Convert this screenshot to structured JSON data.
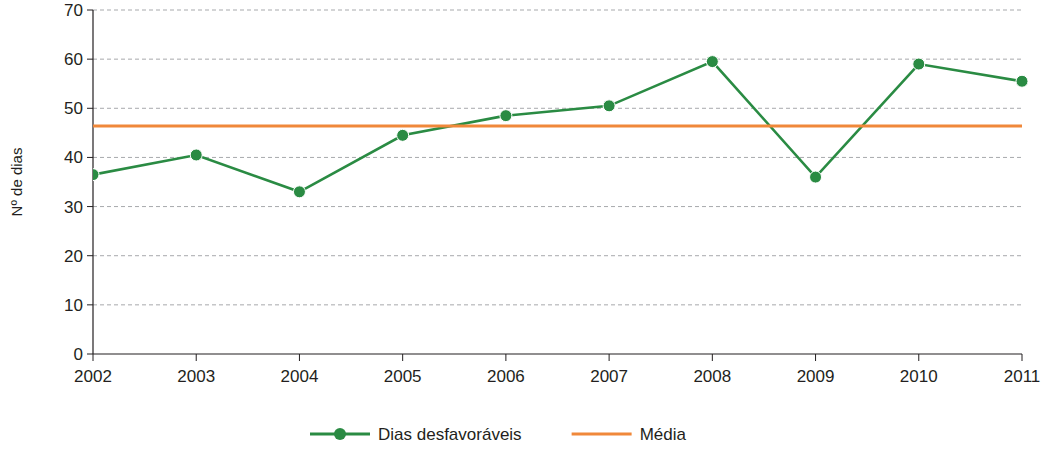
{
  "chart_data": {
    "type": "line",
    "y_label": "Nº de dias",
    "categories": [
      "2002",
      "2003",
      "2004",
      "2005",
      "2006",
      "2007",
      "2008",
      "2009",
      "2010",
      "2011"
    ],
    "series": [
      {
        "name": "Dias desfavoráveis",
        "color": "#2a8b43",
        "marker": "circle",
        "line_style": "solid",
        "values": [
          36.5,
          40.5,
          33,
          44.5,
          48.5,
          50.5,
          59.5,
          36,
          59,
          55.5
        ]
      },
      {
        "name": "Média",
        "color": "#f0883a",
        "marker": "none",
        "line_style": "solid",
        "values": [
          46.4,
          46.4,
          46.4,
          46.4,
          46.4,
          46.4,
          46.4,
          46.4,
          46.4,
          46.4
        ]
      }
    ],
    "ylim": [
      0,
      70
    ],
    "yticks": [
      0,
      10,
      20,
      30,
      40,
      50,
      60,
      70
    ],
    "grid": true,
    "legend": "bottom"
  }
}
